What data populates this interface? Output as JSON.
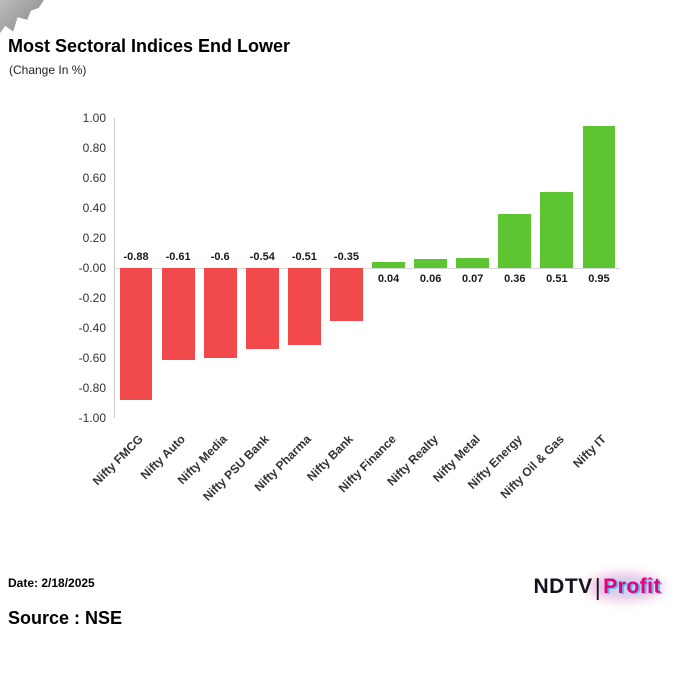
{
  "page": {
    "title": "Most Sectoral Indices End Lower",
    "subtitle": "(Change In %)",
    "date_label": "Date: 2/18/2025",
    "source_label": "Source : NSE",
    "logo": {
      "ndtv": "NDTV",
      "separator": "|",
      "profit": "Profit"
    }
  },
  "chart_data": {
    "type": "bar",
    "title": "Most Sectoral Indices End Lower",
    "subtitle": "(Change In %)",
    "xlabel": "",
    "ylabel": "Change In %",
    "categories": [
      "Nifty FMCG",
      "Nifty Auto",
      "Nifty Media",
      "Nifty PSU Bank",
      "Nifty Pharma",
      "Nifty Bank",
      "Nifty Finance",
      "Nifty Realty",
      "Nifty Metal",
      "Nifty Energy",
      "Nifty Oil & Gas",
      "Nifty IT"
    ],
    "values": [
      -0.88,
      -0.61,
      -0.6,
      -0.54,
      -0.51,
      -0.35,
      0.04,
      0.06,
      0.07,
      0.36,
      0.51,
      0.95
    ],
    "value_labels": [
      "-0.88",
      "-0.61",
      "-0.6",
      "-0.54",
      "-0.51",
      "-0.35",
      "0.04",
      "0.06",
      "0.07",
      "0.36",
      "0.51",
      "0.95"
    ],
    "ylim": [
      -1.0,
      1.0
    ],
    "ytick_labels": [
      "1.00",
      "0.80",
      "0.60",
      "0.40",
      "0.20",
      "-0.00",
      "-0.20",
      "-0.40",
      "-0.60",
      "-0.80",
      "-1.00"
    ],
    "grid": false,
    "legend": "none",
    "colors": {
      "positive": "#5cc531",
      "negative": "#f2494c"
    }
  }
}
